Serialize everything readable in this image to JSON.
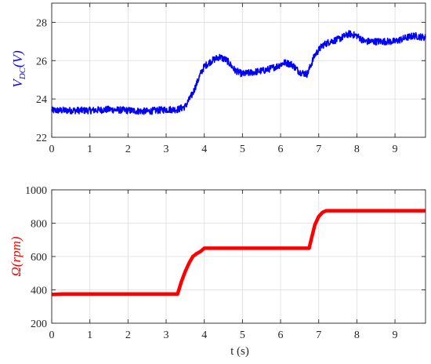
{
  "chart_data": [
    {
      "type": "line",
      "ylabel_main": "V",
      "ylabel_sub": "DC",
      "ylabel_tail": "(V)",
      "xlabel": "",
      "xlim": [
        0,
        9.8
      ],
      "ylim": [
        22,
        29
      ],
      "xticks": [
        "0",
        "1",
        "2",
        "3",
        "4",
        "5",
        "6",
        "7",
        "8",
        "9"
      ],
      "yticks": [
        "22",
        "24",
        "26",
        "28"
      ],
      "grid": true,
      "color": "#0000ff",
      "series": [
        {
          "x": [
            0,
            0.5,
            1,
            1.5,
            2,
            2.5,
            3,
            3.3,
            3.5,
            3.7,
            3.8,
            3.9,
            4.0,
            4.2,
            4.4,
            4.6,
            4.8,
            5.0,
            5.3,
            5.6,
            5.9,
            6.1,
            6.3,
            6.5,
            6.7,
            6.9,
            7.1,
            7.3,
            7.5,
            7.8,
            8.0,
            8.2,
            8.5,
            8.8,
            9.0,
            9.3,
            9.5,
            9.8
          ],
          "y": [
            23.4,
            23.4,
            23.4,
            23.45,
            23.4,
            23.35,
            23.45,
            23.45,
            23.6,
            24.3,
            24.8,
            25.3,
            25.7,
            26.0,
            26.2,
            26.0,
            25.5,
            25.3,
            25.4,
            25.5,
            25.7,
            25.9,
            25.8,
            25.4,
            25.3,
            26.3,
            26.8,
            27.0,
            27.1,
            27.4,
            27.3,
            27.0,
            27.0,
            27.0,
            27.0,
            27.2,
            27.3,
            27.2
          ]
        }
      ]
    },
    {
      "type": "line",
      "ylabel": "Ω(rpm)",
      "xlabel": "t (s)",
      "xlim": [
        0,
        9.8
      ],
      "ylim": [
        200,
        1000
      ],
      "xticks": [
        "0",
        "1",
        "2",
        "3",
        "4",
        "5",
        "6",
        "7",
        "8",
        "9"
      ],
      "yticks": [
        "200",
        "400",
        "600",
        "800",
        "1000"
      ],
      "grid": true,
      "color": "#ff0000",
      "series": [
        {
          "x": [
            0,
            0.3,
            1,
            2,
            3,
            3.3,
            3.4,
            3.5,
            3.6,
            3.7,
            3.8,
            3.9,
            4.0,
            4.2,
            5,
            6,
            6.75,
            6.8,
            6.9,
            7.0,
            7.1,
            7.2,
            8,
            9,
            9.8
          ],
          "y": [
            372,
            375,
            375,
            375,
            375,
            375,
            450,
            510,
            560,
            600,
            618,
            630,
            650,
            650,
            650,
            650,
            650,
            700,
            790,
            840,
            865,
            875,
            875,
            875,
            875
          ]
        }
      ]
    }
  ]
}
